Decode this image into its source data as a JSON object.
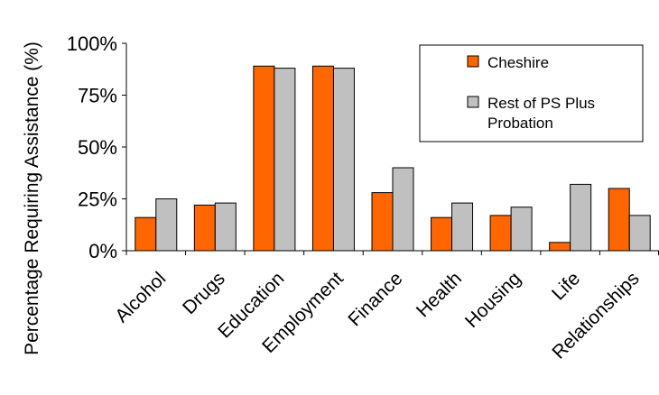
{
  "chart_data": {
    "type": "bar",
    "title": "",
    "xlabel": "",
    "ylabel": "Percentage Requiring Assistance (%)",
    "ylim": [
      0,
      100
    ],
    "yticks": [
      "0%",
      "25%",
      "50%",
      "75%",
      "100%"
    ],
    "ytick_values": [
      0,
      25,
      50,
      75,
      100
    ],
    "grid": false,
    "legend_position": "top-right",
    "categories": [
      "Alcohol",
      "Drugs",
      "Education",
      "Employment",
      "Finance",
      "Health",
      "Housing",
      "Life",
      "Relationships"
    ],
    "series": [
      {
        "name": "Cheshire",
        "color": "#ff6600",
        "values": [
          16,
          22,
          89,
          89,
          28,
          16,
          17,
          4,
          30
        ]
      },
      {
        "name": "Rest of PS Plus Probation",
        "color": "#c0c0c0",
        "values": [
          25,
          23,
          88,
          88,
          40,
          23,
          21,
          32,
          17
        ]
      }
    ]
  }
}
